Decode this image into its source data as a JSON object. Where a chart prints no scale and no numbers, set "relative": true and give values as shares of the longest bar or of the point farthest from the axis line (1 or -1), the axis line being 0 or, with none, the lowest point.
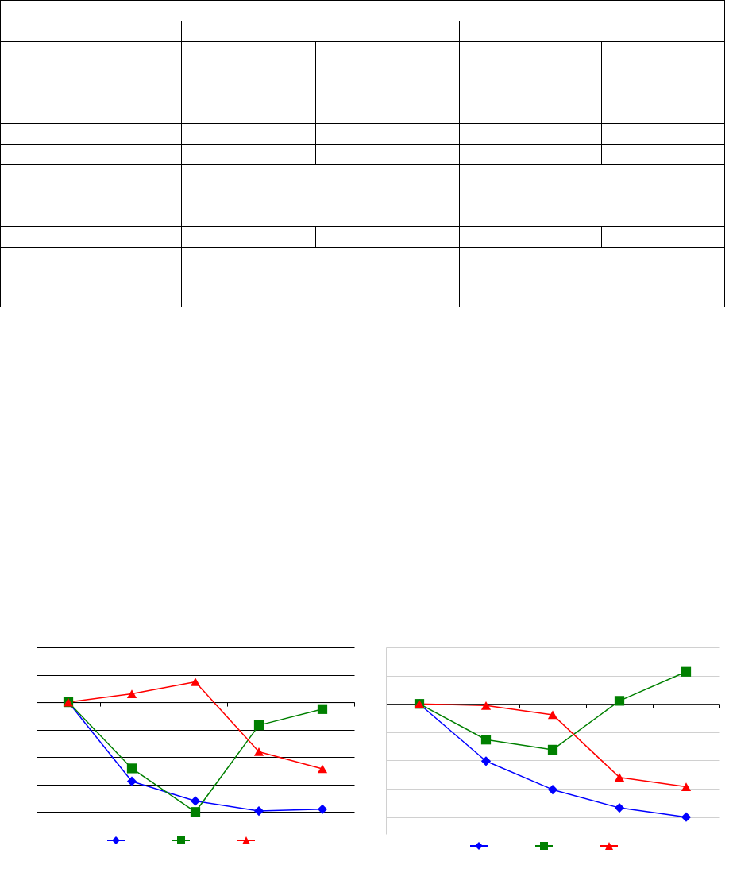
{
  "chart_data": [
    {
      "type": "line",
      "relative": true,
      "categories": [
        null,
        null,
        null,
        null,
        null
      ],
      "grid": true,
      "series": [
        {
          "color": "#0000ff",
          "marker": "diamond",
          "values": [
            0,
            -0.721,
            -0.9,
            -0.991,
            -0.975
          ]
        },
        {
          "color": "#008000",
          "marker": "square",
          "values": [
            0,
            -0.603,
            -1,
            -0.21,
            -0.063
          ]
        },
        {
          "color": "#ff0000",
          "marker": "triangle",
          "values": [
            0,
            0.076,
            0.185,
            -0.451,
            -0.607
          ]
        }
      ]
    },
    {
      "type": "line",
      "relative": true,
      "categories": [
        null,
        null,
        null,
        null,
        null
      ],
      "grid": true,
      "series": [
        {
          "color": "#0000ff",
          "marker": "diamond",
          "values": [
            0,
            -0.506,
            -0.758,
            -0.919,
            -1
          ]
        },
        {
          "color": "#008000",
          "marker": "square",
          "values": [
            0,
            -0.316,
            -0.405,
            0.027,
            0.284
          ]
        },
        {
          "color": "#ff0000",
          "marker": "triangle",
          "values": [
            0,
            -0.015,
            -0.096,
            -0.649,
            -0.733
          ]
        }
      ]
    }
  ]
}
